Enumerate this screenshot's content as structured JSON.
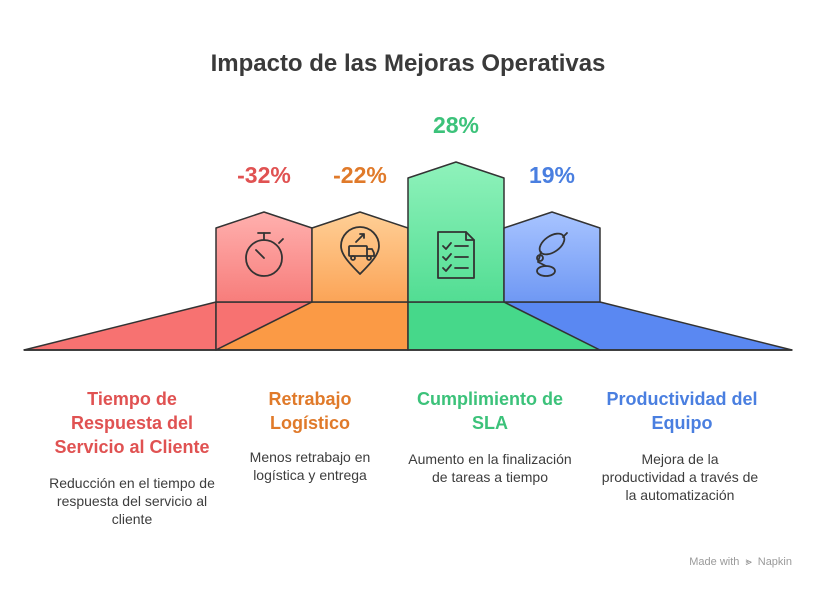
{
  "title": "Impacto de las Mejoras Operativas",
  "columns": [
    {
      "value": "-32%",
      "color": "#e05252",
      "icon": "stopwatch-icon",
      "heading": "Tiempo de Respuesta del Servicio al Cliente",
      "description": "Reducción en el tiempo de respuesta del servicio al cliente"
    },
    {
      "value": "-22%",
      "color": "#e07a2a",
      "icon": "delivery-truck-location-icon",
      "heading": "Retrabajo Logístico",
      "description": "Menos retrabajo en logística y entrega"
    },
    {
      "value": "28%",
      "color": "#3cc27a",
      "icon": "checklist-document-icon",
      "heading": "Cumplimiento de SLA",
      "description": "Aumento en la finalización de tareas a tiempo"
    },
    {
      "value": "19%",
      "color": "#4a7fe0",
      "icon": "robotic-arm-icon",
      "heading": "Productividad del Equipo",
      "description": "Mejora de la productividad a través de la automatización"
    }
  ],
  "footer": {
    "made_with": "Made with",
    "brand": "Napkin"
  }
}
